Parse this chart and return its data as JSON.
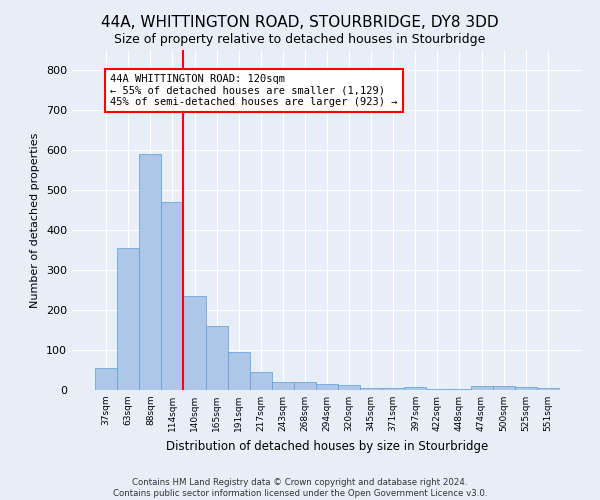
{
  "title": "44A, WHITTINGTON ROAD, STOURBRIDGE, DY8 3DD",
  "subtitle": "Size of property relative to detached houses in Stourbridge",
  "xlabel": "Distribution of detached houses by size in Stourbridge",
  "ylabel": "Number of detached properties",
  "categories": [
    "37sqm",
    "63sqm",
    "88sqm",
    "114sqm",
    "140sqm",
    "165sqm",
    "191sqm",
    "217sqm",
    "243sqm",
    "268sqm",
    "294sqm",
    "320sqm",
    "345sqm",
    "371sqm",
    "397sqm",
    "422sqm",
    "448sqm",
    "474sqm",
    "500sqm",
    "525sqm",
    "551sqm"
  ],
  "values": [
    55,
    355,
    590,
    470,
    235,
    160,
    95,
    45,
    20,
    20,
    15,
    12,
    6,
    5,
    8,
    2,
    2,
    10,
    10,
    8,
    5
  ],
  "bar_color": "#aec6e8",
  "bar_edge_color": "#5a9fd4",
  "bar_width": 1.0,
  "red_line_x": 3.5,
  "annotation_text": "44A WHITTINGTON ROAD: 120sqm\n← 55% of detached houses are smaller (1,129)\n45% of semi-detached houses are larger (923) →",
  "annotation_box_color": "white",
  "annotation_box_edge": "red",
  "ylim": [
    0,
    850
  ],
  "yticks": [
    0,
    100,
    200,
    300,
    400,
    500,
    600,
    700,
    800
  ],
  "footer1": "Contains HM Land Registry data © Crown copyright and database right 2024.",
  "footer2": "Contains public sector information licensed under the Open Government Licence v3.0.",
  "bg_color": "#e8eef8",
  "grid_color": "white",
  "title_fontsize": 11,
  "subtitle_fontsize": 9
}
